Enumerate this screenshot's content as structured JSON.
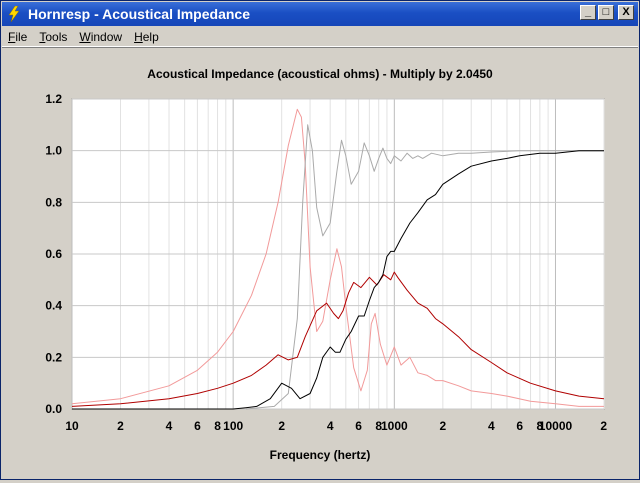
{
  "window": {
    "title": "Hornresp - Acoustical Impedance",
    "controls": {
      "minimize": "_",
      "maximize": "□",
      "close": "X"
    }
  },
  "menu": [
    {
      "accel": "F",
      "rest": "ile"
    },
    {
      "accel": "T",
      "rest": "ools"
    },
    {
      "accel": "W",
      "rest": "indow"
    },
    {
      "accel": "H",
      "rest": "elp"
    }
  ],
  "colors": {
    "plot_bg": "#ffffff",
    "grid": "#cccccc",
    "series_black": "#000000",
    "series_darkred": "#b00000",
    "series_pink": "#f29a9a",
    "series_gray": "#aaaaaa"
  },
  "chart_data": {
    "type": "line",
    "title": "Acoustical Impedance (acoustical ohms) - Multiply by 2.0450",
    "xlabel": "Frequency (hertz)",
    "ylabel": "",
    "x_scale": "log",
    "xlim": [
      10,
      20000
    ],
    "ylim": [
      0,
      1.2
    ],
    "grid": true,
    "y_ticks": [
      "0.0",
      "0.2",
      "0.4",
      "0.6",
      "0.8",
      "1.0",
      "1.2"
    ],
    "x_tick_labels": [
      {
        "f": 10,
        "label": "10"
      },
      {
        "f": 20,
        "label": "2"
      },
      {
        "f": 40,
        "label": "4"
      },
      {
        "f": 60,
        "label": "6"
      },
      {
        "f": 80,
        "label": "8"
      },
      {
        "f": 100,
        "label": "100"
      },
      {
        "f": 200,
        "label": "2"
      },
      {
        "f": 400,
        "label": "4"
      },
      {
        "f": 600,
        "label": "6"
      },
      {
        "f": 800,
        "label": "8"
      },
      {
        "f": 1000,
        "label": "1000"
      },
      {
        "f": 2000,
        "label": "2"
      },
      {
        "f": 4000,
        "label": "4"
      },
      {
        "f": 6000,
        "label": "6"
      },
      {
        "f": 8000,
        "label": "8"
      },
      {
        "f": 10000,
        "label": "10000"
      },
      {
        "f": 20000,
        "label": "2"
      }
    ],
    "series": [
      {
        "color": "#f29a9a",
        "x": [
          10,
          20,
          40,
          60,
          80,
          100,
          130,
          160,
          190,
          220,
          250,
          265,
          280,
          300,
          330,
          360,
          400,
          440,
          470,
          500,
          560,
          620,
          680,
          720,
          760,
          820,
          900,
          1000,
          1100,
          1250,
          1400,
          1600,
          1800,
          2000,
          2500,
          3000,
          4000,
          5000,
          7000,
          10000,
          14000,
          20000
        ],
        "y": [
          0.02,
          0.04,
          0.09,
          0.15,
          0.22,
          0.3,
          0.44,
          0.6,
          0.8,
          1.02,
          1.16,
          1.13,
          0.95,
          0.55,
          0.3,
          0.34,
          0.5,
          0.62,
          0.55,
          0.4,
          0.16,
          0.07,
          0.15,
          0.33,
          0.37,
          0.25,
          0.17,
          0.24,
          0.17,
          0.2,
          0.14,
          0.13,
          0.11,
          0.11,
          0.09,
          0.07,
          0.06,
          0.05,
          0.03,
          0.02,
          0.01,
          0.01
        ]
      },
      {
        "color": "#aaaaaa",
        "x": [
          120,
          180,
          220,
          250,
          270,
          290,
          310,
          330,
          360,
          400,
          440,
          470,
          500,
          540,
          600,
          650,
          700,
          750,
          800,
          850,
          900,
          950,
          1000,
          1100,
          1200,
          1300,
          1400,
          1500,
          1700,
          2000,
          2500,
          3000,
          4000,
          6000,
          10000,
          20000
        ],
        "y": [
          0.0,
          0.01,
          0.06,
          0.35,
          0.8,
          1.1,
          1.0,
          0.78,
          0.67,
          0.72,
          0.92,
          1.04,
          0.98,
          0.87,
          0.92,
          1.03,
          0.98,
          0.92,
          0.97,
          1.01,
          0.97,
          0.95,
          0.98,
          0.96,
          0.99,
          0.97,
          0.98,
          0.97,
          0.99,
          0.98,
          0.99,
          0.99,
          0.995,
          1.0,
          1.0,
          1.0
        ]
      },
      {
        "color": "#b00000",
        "x": [
          10,
          20,
          40,
          60,
          80,
          100,
          130,
          160,
          190,
          220,
          250,
          280,
          330,
          380,
          420,
          450,
          480,
          520,
          560,
          620,
          700,
          780,
          860,
          950,
          1000,
          1050,
          1200,
          1400,
          1600,
          1800,
          2000,
          2500,
          3000,
          4000,
          5000,
          7000,
          10000,
          14000,
          20000
        ],
        "y": [
          0.01,
          0.02,
          0.04,
          0.06,
          0.08,
          0.1,
          0.13,
          0.17,
          0.21,
          0.19,
          0.2,
          0.28,
          0.38,
          0.41,
          0.37,
          0.35,
          0.38,
          0.45,
          0.49,
          0.47,
          0.51,
          0.48,
          0.52,
          0.5,
          0.53,
          0.51,
          0.46,
          0.41,
          0.39,
          0.35,
          0.33,
          0.28,
          0.23,
          0.18,
          0.14,
          0.1,
          0.07,
          0.05,
          0.04
        ]
      },
      {
        "color": "#000000",
        "x": [
          10,
          60,
          80,
          100,
          120,
          140,
          170,
          200,
          230,
          260,
          300,
          330,
          360,
          400,
          430,
          460,
          500,
          540,
          600,
          650,
          700,
          750,
          800,
          850,
          900,
          950,
          1000,
          1100,
          1250,
          1400,
          1600,
          1800,
          2000,
          2500,
          3000,
          4000,
          5000,
          6000,
          8000,
          10000,
          14000,
          20000
        ],
        "y": [
          0.0,
          0.0,
          0.0,
          0.0,
          0.005,
          0.01,
          0.04,
          0.1,
          0.08,
          0.04,
          0.06,
          0.12,
          0.2,
          0.24,
          0.22,
          0.22,
          0.27,
          0.3,
          0.36,
          0.36,
          0.42,
          0.47,
          0.49,
          0.52,
          0.59,
          0.61,
          0.61,
          0.66,
          0.72,
          0.76,
          0.81,
          0.83,
          0.87,
          0.91,
          0.94,
          0.96,
          0.97,
          0.98,
          0.99,
          0.99,
          1.0,
          1.0
        ]
      }
    ]
  }
}
